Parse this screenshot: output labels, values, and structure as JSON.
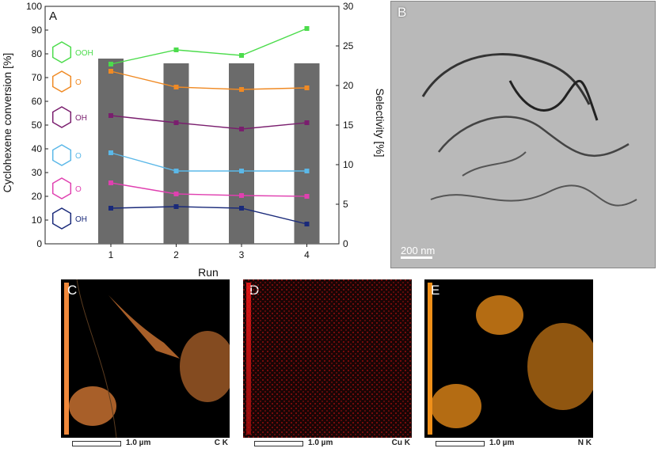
{
  "chart_data": {
    "type": "bar+line",
    "panel_label": "A",
    "xlabel": "Run",
    "ylabel_left": "Cyclohexene conversion [%]",
    "ylabel_right": "Selectivity [%]",
    "categories": [
      "1",
      "2",
      "3",
      "4"
    ],
    "ylim_left": [
      0,
      100
    ],
    "ylim_right": [
      0,
      30
    ],
    "yticks_left": [
      "0",
      "10",
      "20",
      "30",
      "40",
      "50",
      "60",
      "70",
      "80",
      "90",
      "100"
    ],
    "yticks_right": [
      "0",
      "5",
      "10",
      "15",
      "20",
      "25",
      "30"
    ],
    "bars": {
      "axis": "left",
      "color": "#6b6b6b",
      "values": [
        78,
        76,
        76,
        76
      ]
    },
    "series": [
      {
        "product_icon": "cyclohexenyl-hydroperoxide",
        "icon_label": "OOH",
        "color": "#4cdc4c",
        "axis": "right",
        "values": [
          22.7,
          24.5,
          23.8,
          27.2
        ]
      },
      {
        "product_icon": "cyclohexenone",
        "icon_label": "O",
        "color": "#f08a24",
        "axis": "right",
        "values": [
          21.8,
          19.8,
          19.5,
          19.7
        ]
      },
      {
        "product_icon": "cyclohexanediol",
        "icon_label": "OH",
        "color": "#7a1e6e",
        "axis": "right",
        "values": [
          16.2,
          15.3,
          14.5,
          15.3
        ]
      },
      {
        "product_icon": "cyclohexene-oxide-ketone",
        "icon_label": "O",
        "color": "#5bb8e8",
        "axis": "right",
        "values": [
          11.5,
          9.2,
          9.2,
          9.2
        ]
      },
      {
        "product_icon": "cyclohexene-oxide",
        "icon_label": "O",
        "color": "#e040b0",
        "axis": "right",
        "values": [
          7.7,
          6.3,
          6.1,
          6.0
        ]
      },
      {
        "product_icon": "cyclohexenol",
        "icon_label": "OH",
        "color": "#1a2a7a",
        "axis": "right",
        "values": [
          4.5,
          4.7,
          4.5,
          2.5
        ]
      }
    ]
  },
  "images": {
    "tem": {
      "label": "B",
      "scale_text": "200 nm"
    },
    "maps": [
      {
        "label": "C",
        "scale_text": "1.0 µm",
        "element": "C K",
        "color": "#f0883a"
      },
      {
        "label": "D",
        "scale_text": "1.0 µm",
        "element": "Cu K",
        "color": "#d01818"
      },
      {
        "label": "E",
        "scale_text": "1.0 µm",
        "element": "N K",
        "color": "#f0901a"
      }
    ]
  }
}
